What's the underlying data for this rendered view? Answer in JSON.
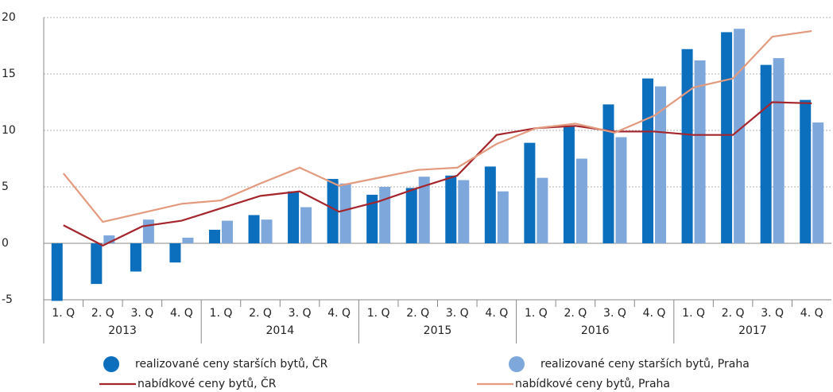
{
  "chart_data": {
    "type": "bar_line",
    "categories": [
      "1. Q",
      "2. Q",
      "3. Q",
      "4. Q",
      "1. Q",
      "2. Q",
      "3. Q",
      "4. Q",
      "1. Q",
      "2. Q",
      "3. Q",
      "4. Q",
      "1. Q",
      "2. Q",
      "3. Q",
      "4. Q",
      "1. Q",
      "2. Q",
      "3. Q",
      "4. Q"
    ],
    "groups": [
      "2013",
      "2014",
      "2015",
      "2016",
      "2017"
    ],
    "series": [
      {
        "name": "realizované ceny starších bytů, ČR",
        "kind": "bar",
        "color": "#0b6fbd",
        "values": [
          -5.1,
          -3.6,
          -2.5,
          -1.7,
          1.2,
          2.5,
          4.6,
          5.7,
          4.3,
          4.9,
          6.0,
          6.8,
          8.9,
          10.4,
          12.3,
          14.6,
          17.2,
          18.7,
          15.8,
          12.7
        ]
      },
      {
        "name": "realizované ceny starších bytů, Praha",
        "kind": "bar",
        "color": "#7ea8dc",
        "values": [
          0,
          0.7,
          2.1,
          0.5,
          2.0,
          2.1,
          3.2,
          5.3,
          5.0,
          5.9,
          5.6,
          4.6,
          5.8,
          7.5,
          9.4,
          13.9,
          16.2,
          19.0,
          16.4,
          10.7
        ]
      },
      {
        "name": "nabídkové ceny bytů, ČR",
        "kind": "line",
        "color": "#a5252c",
        "values": [
          1.6,
          -0.2,
          1.5,
          2.0,
          3.1,
          4.2,
          4.6,
          2.8,
          3.7,
          4.9,
          6.0,
          9.6,
          10.2,
          10.4,
          9.9,
          9.9,
          9.6,
          9.6,
          12.5,
          12.4
        ]
      },
      {
        "name": "nabídkové ceny bytů, Praha",
        "kind": "line",
        "color": "#e39a7e",
        "values": [
          6.2,
          1.9,
          2.7,
          3.5,
          3.8,
          5.3,
          6.7,
          5.1,
          5.8,
          6.5,
          6.7,
          8.8,
          10.2,
          10.6,
          9.8,
          11.3,
          13.8,
          14.6,
          18.3,
          18.8
        ]
      }
    ],
    "ylim": [
      -5,
      20
    ],
    "yticks": [
      -5,
      0,
      5,
      10,
      15,
      20
    ],
    "grid": true
  }
}
